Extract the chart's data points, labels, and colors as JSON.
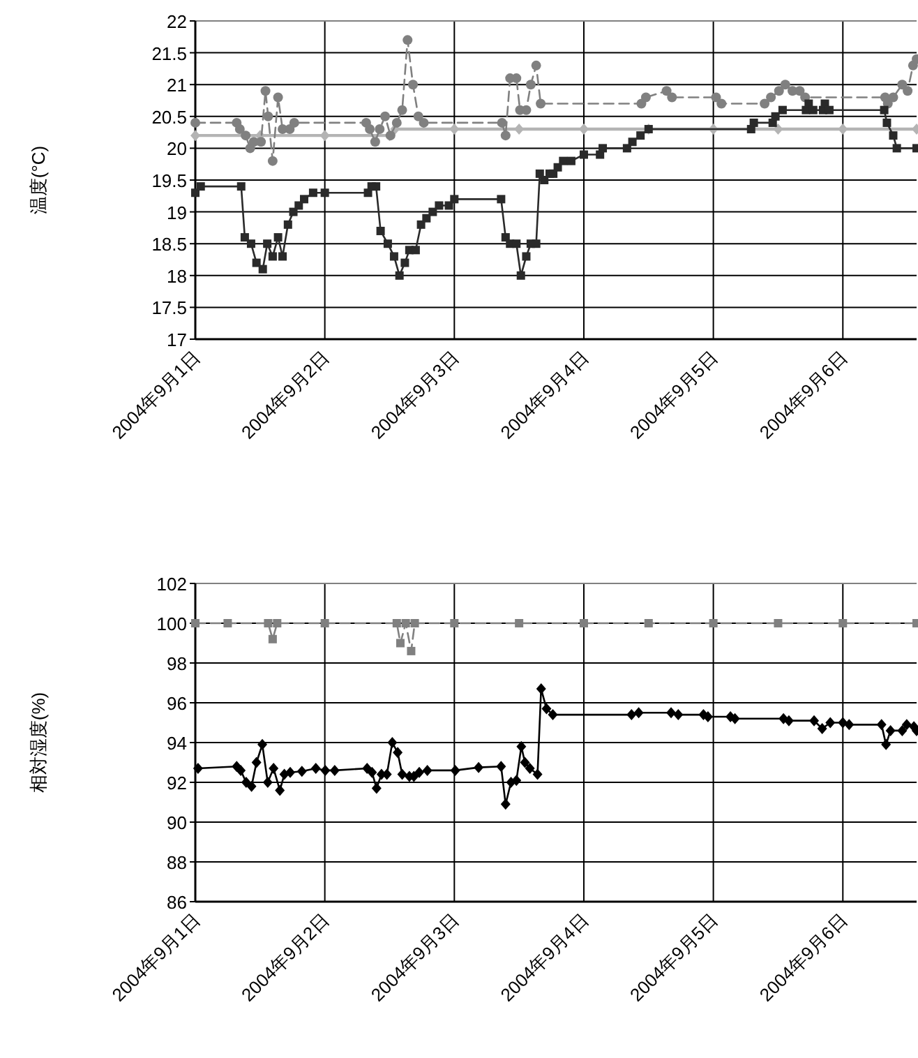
{
  "chart_data": [
    {
      "type": "line",
      "ylabel": "温度(°C)",
      "xlim": [
        "2004-09-01T00:00",
        "2004-09-06T13:40"
      ],
      "ylim": [
        17,
        22
      ],
      "yticks": [
        17,
        17.5,
        18,
        18.5,
        19,
        19.5,
        20,
        20.5,
        21,
        21.5,
        22
      ],
      "xticks": [
        {
          "value": "2004-09-01",
          "label": "2004年9月1日"
        },
        {
          "value": "2004-09-02",
          "label": "2004年9月2日"
        },
        {
          "value": "2004-09-03",
          "label": "2004年9月3日"
        },
        {
          "value": "2004-09-04",
          "label": "2004年9月4日"
        },
        {
          "value": "2004-09-05",
          "label": "2004年9月5日"
        },
        {
          "value": "2004-09-06",
          "label": "2004年9月6日"
        }
      ],
      "grid": true,
      "series": [
        {
          "color": "#b4b4b4",
          "marker": "diamond",
          "line_style": "solid",
          "x": [
            "2004-09-01T00:00",
            "2004-09-01T12:00",
            "2004-09-02T00:00",
            "2004-09-02T12:00",
            "2004-09-02T13:00",
            "2004-09-03T00:00",
            "2004-09-03T12:00",
            "2004-09-04T00:00",
            "2004-09-04T12:00",
            "2004-09-05T00:00",
            "2004-09-05T12:00",
            "2004-09-06T00:00",
            "2004-09-06T13:40"
          ],
          "values": [
            20.2,
            20.2,
            20.2,
            20.2,
            20.3,
            20.3,
            20.3,
            20.3,
            20.3,
            20.3,
            20.3,
            20.3,
            20.3
          ]
        },
        {
          "color": "#808080",
          "marker": "circle",
          "line_style": "dashed",
          "x": [
            "2004-09-01T00:00",
            "2004-09-01T07:40",
            "2004-09-01T08:15",
            "2004-09-01T09:20",
            "2004-09-01T10:10",
            "2004-09-01T10:50",
            "2004-09-01T12:10",
            "2004-09-01T13:00",
            "2004-09-01T13:30",
            "2004-09-01T14:20",
            "2004-09-01T15:20",
            "2004-09-01T16:10",
            "2004-09-01T17:30",
            "2004-09-01T18:20",
            "2004-09-02T07:40",
            "2004-09-02T08:20",
            "2004-09-02T09:20",
            "2004-09-02T10:10",
            "2004-09-02T11:10",
            "2004-09-02T12:10",
            "2004-09-02T13:20",
            "2004-09-02T14:20",
            "2004-09-02T15:20",
            "2004-09-02T16:20",
            "2004-09-02T17:20",
            "2004-09-02T18:20",
            "2004-09-03T08:50",
            "2004-09-03T09:30",
            "2004-09-03T10:20",
            "2004-09-03T11:30",
            "2004-09-03T12:10",
            "2004-09-03T13:20",
            "2004-09-03T14:10",
            "2004-09-03T15:10",
            "2004-09-03T16:00",
            "2004-09-04T10:40",
            "2004-09-04T11:30",
            "2004-09-04T15:20",
            "2004-09-04T16:20",
            "2004-09-05T00:30",
            "2004-09-05T01:30",
            "2004-09-05T09:30",
            "2004-09-05T10:40",
            "2004-09-05T12:10",
            "2004-09-05T13:20",
            "2004-09-05T14:40",
            "2004-09-05T16:00",
            "2004-09-05T17:00",
            "2004-09-06T07:50",
            "2004-09-06T08:20",
            "2004-09-06T09:20",
            "2004-09-06T11:00",
            "2004-09-06T12:00",
            "2004-09-06T13:00",
            "2004-09-06T13:40"
          ],
          "values": [
            20.4,
            20.4,
            20.3,
            20.2,
            20.0,
            20.1,
            20.1,
            20.9,
            20.5,
            19.8,
            20.8,
            20.3,
            20.3,
            20.4,
            20.4,
            20.3,
            20.1,
            20.3,
            20.5,
            20.2,
            20.4,
            20.6,
            21.7,
            21.0,
            20.5,
            20.4,
            20.4,
            20.2,
            21.1,
            21.1,
            20.6,
            20.6,
            21.0,
            21.3,
            20.7,
            20.7,
            20.8,
            20.9,
            20.8,
            20.8,
            20.7,
            20.7,
            20.8,
            20.9,
            21.0,
            20.9,
            20.9,
            20.8,
            20.8,
            20.7,
            20.8,
            21.0,
            20.9,
            21.3,
            21.4
          ]
        },
        {
          "color": "#2a2a2a",
          "marker": "square",
          "line_style": "solid",
          "x": [
            "2004-09-01T00:00",
            "2004-09-01T01:00",
            "2004-09-01T08:30",
            "2004-09-01T09:10",
            "2004-09-01T10:20",
            "2004-09-01T11:20",
            "2004-09-01T12:30",
            "2004-09-01T13:20",
            "2004-09-01T14:20",
            "2004-09-01T15:20",
            "2004-09-01T16:10",
            "2004-09-01T17:10",
            "2004-09-01T18:10",
            "2004-09-01T19:10",
            "2004-09-01T20:10",
            "2004-09-01T21:50",
            "2004-09-02T00:00",
            "2004-09-02T08:00",
            "2004-09-02T08:40",
            "2004-09-02T09:30",
            "2004-09-02T10:20",
            "2004-09-02T11:40",
            "2004-09-02T12:50",
            "2004-09-02T13:50",
            "2004-09-02T14:50",
            "2004-09-02T15:40",
            "2004-09-02T16:50",
            "2004-09-02T17:50",
            "2004-09-02T18:50",
            "2004-09-02T20:00",
            "2004-09-02T21:10",
            "2004-09-02T23:00",
            "2004-09-03T00:00",
            "2004-09-03T08:40",
            "2004-09-03T09:30",
            "2004-09-03T10:20",
            "2004-09-03T11:30",
            "2004-09-03T12:20",
            "2004-09-03T13:20",
            "2004-09-03T14:10",
            "2004-09-03T15:10",
            "2004-09-03T15:50",
            "2004-09-03T16:40",
            "2004-09-03T17:40",
            "2004-09-03T18:20",
            "2004-09-03T19:10",
            "2004-09-03T20:10",
            "2004-09-03T21:40",
            "2004-09-04T00:00",
            "2004-09-04T03:00",
            "2004-09-04T03:30",
            "2004-09-04T08:00",
            "2004-09-04T09:00",
            "2004-09-04T10:30",
            "2004-09-04T12:00",
            "2004-09-05T07:00",
            "2004-09-05T07:30",
            "2004-09-05T11:00",
            "2004-09-05T11:30",
            "2004-09-05T12:50",
            "2004-09-05T17:10",
            "2004-09-05T17:40",
            "2004-09-05T18:30",
            "2004-09-05T20:20",
            "2004-09-05T20:40",
            "2004-09-05T21:30",
            "2004-09-06T07:40",
            "2004-09-06T08:10",
            "2004-09-06T09:20",
            "2004-09-06T10:00",
            "2004-09-06T13:40"
          ],
          "values": [
            19.3,
            19.4,
            19.4,
            18.6,
            18.5,
            18.2,
            18.1,
            18.5,
            18.3,
            18.6,
            18.3,
            18.8,
            19.0,
            19.1,
            19.2,
            19.3,
            19.3,
            19.3,
            19.4,
            19.4,
            18.7,
            18.5,
            18.3,
            18.0,
            18.2,
            18.4,
            18.4,
            18.8,
            18.9,
            19.0,
            19.1,
            19.1,
            19.2,
            19.2,
            18.6,
            18.5,
            18.5,
            18.0,
            18.3,
            18.5,
            18.5,
            19.6,
            19.5,
            19.6,
            19.6,
            19.7,
            19.8,
            19.8,
            19.9,
            19.9,
            20.0,
            20.0,
            20.1,
            20.2,
            20.3,
            20.3,
            20.4,
            20.4,
            20.5,
            20.6,
            20.6,
            20.7,
            20.6,
            20.6,
            20.7,
            20.6,
            20.6,
            20.4,
            20.2,
            20.0,
            20.0
          ]
        }
      ]
    },
    {
      "type": "line",
      "ylabel": "相対湿度(%)",
      "xlim": [
        "2004-09-01T00:00",
        "2004-09-06T13:40"
      ],
      "ylim": [
        86,
        102
      ],
      "yticks": [
        86,
        88,
        90,
        92,
        94,
        96,
        98,
        100,
        102
      ],
      "xticks": [
        {
          "value": "2004-09-01",
          "label": "2004年9月1日"
        },
        {
          "value": "2004-09-02",
          "label": "2004年9月2日"
        },
        {
          "value": "2004-09-03",
          "label": "2004年9月3日"
        },
        {
          "value": "2004-09-04",
          "label": "2004年9月4日"
        },
        {
          "value": "2004-09-05",
          "label": "2004年9月5日"
        },
        {
          "value": "2004-09-06",
          "label": "2004年9月6日"
        }
      ],
      "grid": true,
      "series": [
        {
          "color": "#808080",
          "marker": "square",
          "line_style": "dashed",
          "x": [
            "2004-09-01T00:00",
            "2004-09-01T06:00",
            "2004-09-01T13:30",
            "2004-09-01T14:20",
            "2004-09-01T15:10",
            "2004-09-02T00:00",
            "2004-09-02T13:20",
            "2004-09-02T14:00",
            "2004-09-02T15:00",
            "2004-09-02T16:00",
            "2004-09-02T16:40",
            "2004-09-03T00:00",
            "2004-09-03T12:00",
            "2004-09-04T00:00",
            "2004-09-04T12:00",
            "2004-09-05T00:00",
            "2004-09-05T12:00",
            "2004-09-06T00:00",
            "2004-09-06T13:40"
          ],
          "values": [
            100,
            100,
            100,
            99.2,
            100,
            100,
            100,
            99.0,
            100,
            98.6,
            100,
            100,
            100,
            100,
            100,
            100,
            100,
            100,
            100
          ]
        },
        {
          "color": "#000000",
          "marker": "diamond",
          "line_style": "solid",
          "x": [
            "2004-09-01T00:30",
            "2004-09-01T07:40",
            "2004-09-01T08:25",
            "2004-09-01T09:25",
            "2004-09-01T10:25",
            "2004-09-01T11:20",
            "2004-09-01T12:25",
            "2004-09-01T13:25",
            "2004-09-01T14:30",
            "2004-09-01T15:40",
            "2004-09-01T16:30",
            "2004-09-01T17:35",
            "2004-09-01T19:45",
            "2004-09-01T22:20",
            "2004-09-02T00:05",
            "2004-09-02T01:50",
            "2004-09-02T07:50",
            "2004-09-02T08:45",
            "2004-09-02T09:35",
            "2004-09-02T10:30",
            "2004-09-02T11:30",
            "2004-09-02T12:30",
            "2004-09-02T13:30",
            "2004-09-02T14:20",
            "2004-09-02T15:40",
            "2004-09-02T16:30",
            "2004-09-02T17:30",
            "2004-09-02T19:00",
            "2004-09-03T00:10",
            "2004-09-03T04:30",
            "2004-09-03T08:40",
            "2004-09-03T09:30",
            "2004-09-03T10:30",
            "2004-09-03T11:30",
            "2004-09-03T12:25",
            "2004-09-03T13:05",
            "2004-09-03T14:00",
            "2004-09-03T15:25",
            "2004-09-03T16:05",
            "2004-09-03T17:05",
            "2004-09-03T18:15",
            "2004-09-04T08:50",
            "2004-09-04T10:10",
            "2004-09-04T16:10",
            "2004-09-04T17:30",
            "2004-09-04T22:10",
            "2004-09-04T23:00",
            "2004-09-05T03:10",
            "2004-09-05T04:00",
            "2004-09-05T13:00",
            "2004-09-05T14:00",
            "2004-09-05T18:40",
            "2004-09-05T20:10",
            "2004-09-05T21:40",
            "2004-09-06T00:00",
            "2004-09-06T01:10",
            "2004-09-06T07:10",
            "2004-09-06T08:00",
            "2004-09-06T08:50",
            "2004-09-06T11:00",
            "2004-09-06T11:50",
            "2004-09-06T13:10",
            "2004-09-06T13:40"
          ],
          "values": [
            92.7,
            92.8,
            92.6,
            92.0,
            91.8,
            93.0,
            93.9,
            92.0,
            92.7,
            91.6,
            92.4,
            92.5,
            92.55,
            92.7,
            92.6,
            92.6,
            92.7,
            92.5,
            91.7,
            92.4,
            92.4,
            94.0,
            93.5,
            92.4,
            92.3,
            92.3,
            92.5,
            92.6,
            92.6,
            92.75,
            92.8,
            90.9,
            92.0,
            92.1,
            93.8,
            93.0,
            92.7,
            92.4,
            96.7,
            95.7,
            95.4,
            95.4,
            95.5,
            95.5,
            95.4,
            95.4,
            95.3,
            95.3,
            95.2,
            95.2,
            95.1,
            95.1,
            94.7,
            95.0,
            95.0,
            94.9,
            94.9,
            93.9,
            94.6,
            94.6,
            94.9,
            94.8,
            94.6
          ]
        }
      ]
    }
  ]
}
